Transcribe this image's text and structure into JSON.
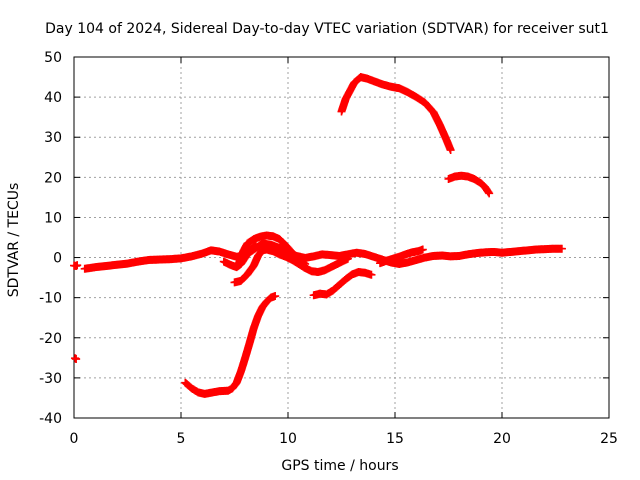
{
  "chart_data": {
    "type": "scatter",
    "title": "Day 104 of 2024, Sidereal Day-to-day VTEC variation (SDTVAR) for receiver sut1",
    "xlabel": "GPS time / hours",
    "ylabel": "SDTVAR / TECUs",
    "xlim": [
      0,
      25
    ],
    "ylim": [
      -40,
      50
    ],
    "xticks": [
      0,
      5,
      10,
      15,
      20,
      25
    ],
    "yticks": [
      -40,
      -30,
      -20,
      -10,
      0,
      10,
      20,
      30,
      40,
      50
    ],
    "xtick_labels": [
      "0",
      "5",
      "10",
      "15",
      "20",
      "25"
    ],
    "ytick_labels": [
      "-40",
      "-30",
      "-20",
      "-10",
      "0",
      "10",
      "20",
      "30",
      "40",
      "50"
    ],
    "grid": true,
    "marker_color": "#ff0000",
    "series": [
      {
        "name": "seg-isolated-start",
        "points": [
          [
            0.0,
            -2.0
          ],
          [
            0.1,
            -2.1
          ],
          [
            0.15,
            -1.9
          ],
          [
            0.05,
            -25.1
          ],
          [
            0.1,
            -25.3
          ]
        ]
      },
      {
        "name": "seg-main-baseline",
        "points": [
          [
            0.5,
            -2.8
          ],
          [
            1.0,
            -2.4
          ],
          [
            1.5,
            -2.1
          ],
          [
            2.0,
            -1.8
          ],
          [
            2.5,
            -1.5
          ],
          [
            3.0,
            -1.0
          ],
          [
            3.5,
            -0.6
          ],
          [
            4.0,
            -0.5
          ],
          [
            4.5,
            -0.4
          ],
          [
            5.0,
            -0.2
          ],
          [
            5.5,
            0.3
          ],
          [
            6.0,
            1.0
          ],
          [
            6.4,
            1.8
          ],
          [
            6.8,
            1.5
          ],
          [
            7.2,
            0.8
          ],
          [
            7.6,
            0.2
          ],
          [
            8.0,
            0.5
          ],
          [
            8.4,
            2.0
          ],
          [
            8.8,
            3.5
          ],
          [
            9.2,
            3.2
          ],
          [
            9.6,
            2.4
          ],
          [
            10.0,
            1.2
          ],
          [
            10.4,
            0.4
          ],
          [
            10.8,
            -0.1
          ],
          [
            11.2,
            0.3
          ],
          [
            11.6,
            0.8
          ],
          [
            12.0,
            0.6
          ],
          [
            12.4,
            0.4
          ],
          [
            12.8,
            0.8
          ],
          [
            13.2,
            1.2
          ],
          [
            13.6,
            0.9
          ],
          [
            14.0,
            0.2
          ],
          [
            14.4,
            -0.5
          ],
          [
            14.8,
            -1.2
          ],
          [
            15.2,
            -1.6
          ],
          [
            15.6,
            -1.2
          ],
          [
            16.0,
            -0.6
          ],
          [
            16.4,
            0.0
          ],
          [
            16.8,
            0.4
          ],
          [
            17.2,
            0.5
          ],
          [
            17.6,
            0.3
          ],
          [
            18.0,
            0.4
          ],
          [
            18.4,
            0.8
          ],
          [
            18.8,
            1.1
          ],
          [
            19.2,
            1.3
          ],
          [
            19.6,
            1.4
          ],
          [
            20.0,
            1.2
          ],
          [
            20.4,
            1.4
          ],
          [
            20.8,
            1.6
          ],
          [
            21.2,
            1.8
          ],
          [
            21.6,
            2.0
          ],
          [
            22.0,
            2.1
          ],
          [
            22.4,
            2.2
          ],
          [
            22.8,
            2.2
          ]
        ]
      },
      {
        "name": "seg-hump-a",
        "points": [
          [
            7.0,
            -1.0
          ],
          [
            7.3,
            -1.8
          ],
          [
            7.6,
            -2.4
          ],
          [
            7.8,
            -1.6
          ],
          [
            8.0,
            0.0
          ],
          [
            8.2,
            1.8
          ],
          [
            8.5,
            3.0
          ]
        ]
      },
      {
        "name": "seg-hump-b",
        "points": [
          [
            7.7,
            -1.5
          ],
          [
            7.9,
            1.5
          ],
          [
            8.1,
            3.5
          ],
          [
            8.4,
            4.6
          ],
          [
            8.7,
            5.2
          ],
          [
            9.0,
            5.5
          ],
          [
            9.3,
            5.3
          ],
          [
            9.6,
            4.6
          ],
          [
            9.9,
            3.0
          ],
          [
            10.2,
            1.2
          ],
          [
            10.5,
            -0.4
          ],
          [
            10.8,
            -1.6
          ]
        ]
      },
      {
        "name": "seg-descending",
        "points": [
          [
            7.5,
            -6.2
          ],
          [
            7.8,
            -5.8
          ],
          [
            8.1,
            -4.2
          ],
          [
            8.4,
            -2.0
          ],
          [
            8.6,
            0.4
          ],
          [
            8.8,
            1.8
          ],
          [
            9.0,
            2.0
          ],
          [
            9.3,
            1.6
          ],
          [
            9.6,
            0.8
          ],
          [
            9.9,
            0.2
          ],
          [
            10.2,
            -0.6
          ],
          [
            10.5,
            -1.6
          ],
          [
            10.8,
            -2.6
          ],
          [
            11.1,
            -3.4
          ],
          [
            11.4,
            -3.6
          ],
          [
            11.7,
            -3.2
          ],
          [
            12.0,
            -2.4
          ],
          [
            12.3,
            -1.6
          ],
          [
            12.6,
            -0.8
          ],
          [
            12.8,
            -0.3
          ]
        ]
      },
      {
        "name": "seg-lower-mid",
        "points": [
          [
            11.2,
            -9.4
          ],
          [
            11.5,
            -9.0
          ],
          [
            11.8,
            -9.2
          ],
          [
            12.1,
            -8.2
          ],
          [
            12.4,
            -6.8
          ],
          [
            12.7,
            -5.4
          ],
          [
            13.0,
            -4.2
          ],
          [
            13.3,
            -3.6
          ],
          [
            13.6,
            -3.8
          ],
          [
            13.9,
            -4.3
          ]
        ]
      },
      {
        "name": "seg-minor-mid",
        "points": [
          [
            14.3,
            -1.4
          ],
          [
            14.6,
            -0.8
          ],
          [
            14.9,
            -0.3
          ],
          [
            15.2,
            0.2
          ],
          [
            15.5,
            0.8
          ],
          [
            15.8,
            1.3
          ],
          [
            16.1,
            1.6
          ],
          [
            16.3,
            2.0
          ]
        ]
      },
      {
        "name": "seg-deep-dip",
        "points": [
          [
            5.2,
            -31.2
          ],
          [
            5.5,
            -32.6
          ],
          [
            5.8,
            -33.6
          ],
          [
            6.1,
            -34.0
          ],
          [
            6.4,
            -33.7
          ],
          [
            6.8,
            -33.3
          ],
          [
            7.2,
            -33.2
          ],
          [
            7.4,
            -32.6
          ],
          [
            7.6,
            -31.2
          ],
          [
            7.8,
            -28.4
          ],
          [
            8.0,
            -25.0
          ],
          [
            8.2,
            -21.4
          ],
          [
            8.4,
            -17.6
          ],
          [
            8.6,
            -14.6
          ],
          [
            8.8,
            -12.4
          ],
          [
            9.0,
            -11.0
          ],
          [
            9.2,
            -10.0
          ],
          [
            9.4,
            -9.6
          ]
        ]
      },
      {
        "name": "seg-high-arc",
        "points": [
          [
            12.5,
            36.4
          ],
          [
            12.7,
            39.6
          ],
          [
            12.9,
            41.6
          ],
          [
            13.1,
            43.6
          ],
          [
            13.4,
            45.0
          ],
          [
            13.7,
            44.6
          ],
          [
            14.0,
            44.0
          ],
          [
            14.4,
            43.2
          ],
          [
            14.8,
            42.6
          ],
          [
            15.2,
            42.2
          ],
          [
            15.6,
            41.2
          ],
          [
            16.0,
            40.0
          ],
          [
            16.4,
            38.6
          ],
          [
            16.8,
            36.2
          ],
          [
            17.1,
            33.0
          ],
          [
            17.4,
            29.4
          ],
          [
            17.6,
            26.8
          ]
        ]
      },
      {
        "name": "seg-high-tail",
        "points": [
          [
            17.5,
            19.6
          ],
          [
            17.8,
            20.2
          ],
          [
            18.1,
            20.4
          ],
          [
            18.4,
            20.2
          ],
          [
            18.7,
            19.6
          ],
          [
            19.0,
            18.6
          ],
          [
            19.2,
            17.6
          ],
          [
            19.4,
            16.0
          ]
        ]
      }
    ]
  }
}
